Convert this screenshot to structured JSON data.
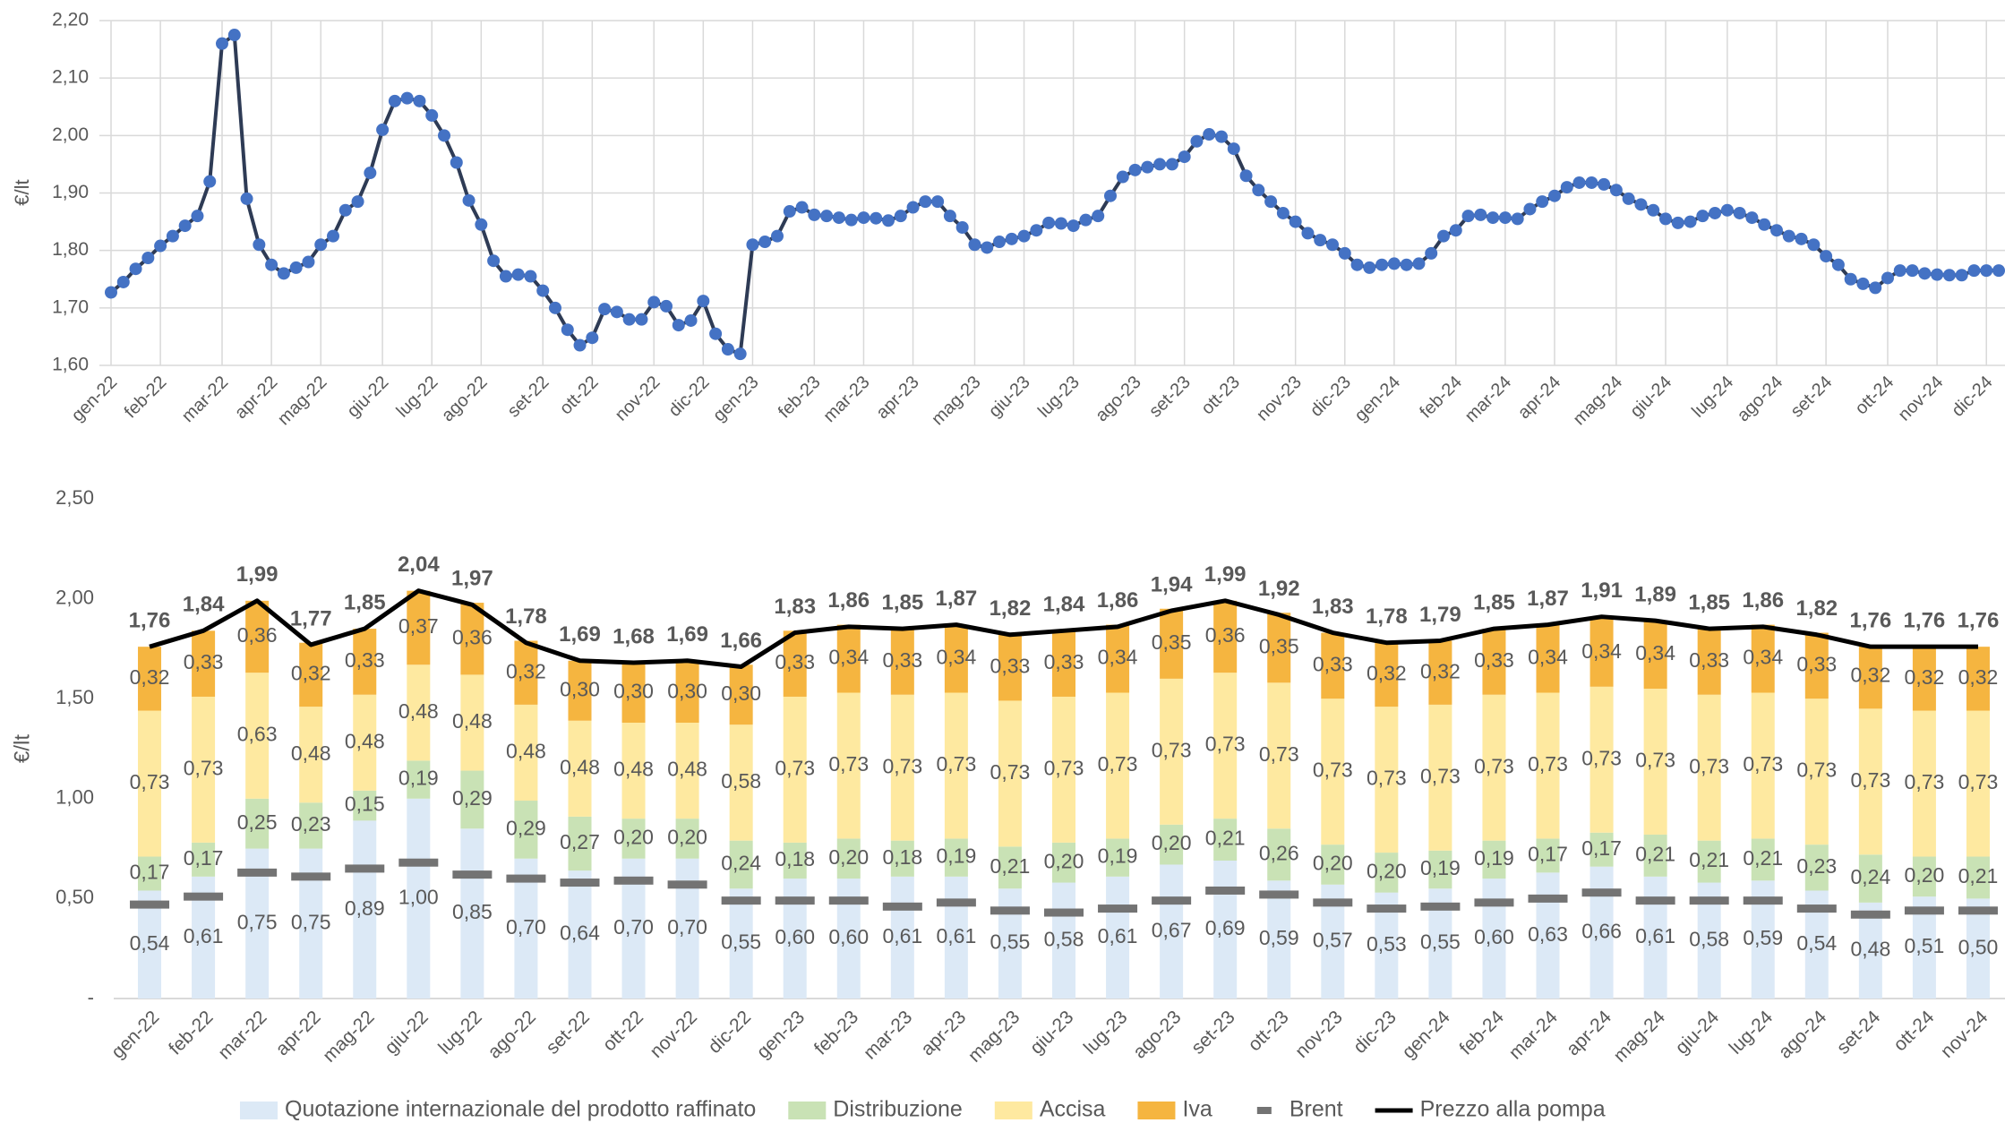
{
  "chart_data": [
    {
      "type": "line",
      "y_label": "€/lt",
      "color": "#4472c4",
      "line_color": "#2e3b55",
      "grid": true,
      "ylim": [
        1.6,
        2.2
      ],
      "yticks": [
        {
          "value": 1.6,
          "label": "1,60"
        },
        {
          "value": 1.7,
          "label": "1,70"
        },
        {
          "value": 1.8,
          "label": "1,80"
        },
        {
          "value": 1.9,
          "label": "1,90"
        },
        {
          "value": 2.0,
          "label": "2,00"
        },
        {
          "value": 2.1,
          "label": "2,10"
        },
        {
          "value": 2.2,
          "label": "2,20"
        }
      ],
      "categories": [
        "gen-22",
        null,
        null,
        null,
        "feb-22",
        null,
        null,
        null,
        null,
        "mar-22",
        null,
        null,
        null,
        "apr-22",
        null,
        null,
        null,
        "mag-22",
        null,
        null,
        null,
        null,
        "giu-22",
        null,
        null,
        null,
        "lug-22",
        null,
        null,
        null,
        "ago-22",
        null,
        null,
        null,
        null,
        "set-22",
        null,
        null,
        null,
        "ott-22",
        null,
        null,
        null,
        null,
        "nov-22",
        null,
        null,
        null,
        "dic-22",
        null,
        null,
        null,
        "gen-23",
        null,
        null,
        null,
        null,
        "feb-23",
        null,
        null,
        null,
        "mar-23",
        null,
        null,
        null,
        "apr-23",
        null,
        null,
        null,
        null,
        "mag-23",
        null,
        null,
        null,
        "giu-23",
        null,
        null,
        null,
        "lug-23",
        null,
        null,
        null,
        null,
        "ago-23",
        null,
        null,
        null,
        "set-23",
        null,
        null,
        null,
        "ott-23",
        null,
        null,
        null,
        null,
        "nov-23",
        null,
        null,
        null,
        "dic-23",
        null,
        null,
        null,
        "gen-24",
        null,
        null,
        null,
        null,
        "feb-24",
        null,
        null,
        null,
        "mar-24",
        null,
        null,
        null,
        "apr-24",
        null,
        null,
        null,
        null,
        "mag-24",
        null,
        null,
        null,
        "giu-24",
        null,
        null,
        null,
        null,
        "lug-24",
        null,
        null,
        null,
        "ago-24",
        null,
        null,
        null,
        "set-24",
        null,
        null,
        null,
        null,
        "ott-24",
        null,
        null,
        null,
        "nov-24",
        null,
        null,
        null,
        "dic-24",
        null
      ],
      "values": [
        1.727,
        1.745,
        1.768,
        1.787,
        1.808,
        1.825,
        1.843,
        1.86,
        1.92,
        2.16,
        2.175,
        1.89,
        1.81,
        1.775,
        1.76,
        1.77,
        1.78,
        1.81,
        1.825,
        1.87,
        1.885,
        1.935,
        2.01,
        2.06,
        2.065,
        2.06,
        2.035,
        2.0,
        1.953,
        1.887,
        1.845,
        1.782,
        1.755,
        1.758,
        1.755,
        1.73,
        1.7,
        1.662,
        1.635,
        1.648,
        1.698,
        1.693,
        1.68,
        1.68,
        1.71,
        1.703,
        1.67,
        1.678,
        1.712,
        1.655,
        1.628,
        1.62,
        1.81,
        1.815,
        1.825,
        1.868,
        1.875,
        1.862,
        1.86,
        1.857,
        1.853,
        1.857,
        1.856,
        1.852,
        1.86,
        1.875,
        1.885,
        1.885,
        1.86,
        1.84,
        1.81,
        1.805,
        1.815,
        1.82,
        1.825,
        1.835,
        1.848,
        1.847,
        1.843,
        1.853,
        1.86,
        1.895,
        1.928,
        1.94,
        1.945,
        1.95,
        1.95,
        1.963,
        1.99,
        2.002,
        1.998,
        1.977,
        1.93,
        1.905,
        1.885,
        1.865,
        1.85,
        1.83,
        1.818,
        1.81,
        1.795,
        1.775,
        1.77,
        1.775,
        1.777,
        1.775,
        1.777,
        1.795,
        1.825,
        1.835,
        1.86,
        1.862,
        1.857,
        1.857,
        1.855,
        1.872,
        1.885,
        1.895,
        1.91,
        1.918,
        1.918,
        1.915,
        1.905,
        1.89,
        1.88,
        1.87,
        1.855,
        1.848,
        1.85,
        1.86,
        1.865,
        1.87,
        1.865,
        1.857,
        1.845,
        1.835,
        1.825,
        1.82,
        1.81,
        1.79,
        1.775,
        1.75,
        1.742,
        1.735,
        1.752,
        1.765,
        1.765,
        1.76,
        1.758,
        1.757,
        1.757,
        1.765,
        1.765,
        1.765
      ]
    },
    {
      "type": "bar",
      "stacked": true,
      "y_label": "€/lt",
      "grid": false,
      "legend": "bottom",
      "ylim": [
        0,
        2.5
      ],
      "yticks": [
        {
          "value": 0,
          "label": "-"
        },
        {
          "value": 0.5,
          "label": "0,50"
        },
        {
          "value": 1.0,
          "label": "1,00"
        },
        {
          "value": 1.5,
          "label": "1,50"
        },
        {
          "value": 2.0,
          "label": "2,00"
        },
        {
          "value": 2.5,
          "label": "2,50"
        }
      ],
      "categories": [
        "gen-22",
        "feb-22",
        "mar-22",
        "apr-22",
        "mag-22",
        "giu-22",
        "lug-22",
        "ago-22",
        "set-22",
        "ott-22",
        "nov-22",
        "dic-22",
        "gen-23",
        "feb-23",
        "mar-23",
        "apr-23",
        "mag-23",
        "giu-23",
        "lug-23",
        "ago-23",
        "set-23",
        "ott-23",
        "nov-23",
        "dic-23",
        "gen-24",
        "feb-24",
        "mar-24",
        "apr-24",
        "mag-24",
        "giu-24",
        "lug-24",
        "ago-24",
        "set-24",
        "ott-24",
        "nov-24"
      ],
      "series": [
        {
          "name": "Quotazione internazionale del prodotto raffinato",
          "type": "bar",
          "color": "#dce9f6",
          "values": [
            0.54,
            0.61,
            0.75,
            0.75,
            0.89,
            1.0,
            0.85,
            0.7,
            0.64,
            0.7,
            0.7,
            0.55,
            0.6,
            0.6,
            0.61,
            0.61,
            0.55,
            0.58,
            0.61,
            0.67,
            0.69,
            0.59,
            0.57,
            0.53,
            0.55,
            0.6,
            0.63,
            0.66,
            0.61,
            0.58,
            0.59,
            0.54,
            0.48,
            0.51,
            0.5
          ],
          "value_labels": [
            "0,54",
            "0,61",
            "0,75",
            "0,75",
            "0,89",
            "1,00",
            "0,85",
            "0,70",
            "0,64",
            "0,70",
            "0,70",
            "0,55",
            "0,60",
            "0,60",
            "0,61",
            "0,61",
            "0,55",
            "0,58",
            "0,61",
            "0,67",
            "0,69",
            "0,59",
            "0,57",
            "0,53",
            "0,55",
            "0,60",
            "0,63",
            "0,66",
            "0,61",
            "0,58",
            "0,59",
            "0,54",
            "0,48",
            "0,51",
            "0,50"
          ]
        },
        {
          "name": "Distribuzione",
          "type": "bar",
          "color": "#c9e2b5",
          "values": [
            0.17,
            0.17,
            0.25,
            0.23,
            0.15,
            0.19,
            0.29,
            0.29,
            0.27,
            0.2,
            0.2,
            0.24,
            0.18,
            0.2,
            0.18,
            0.19,
            0.21,
            0.2,
            0.19,
            0.2,
            0.21,
            0.26,
            0.2,
            0.2,
            0.19,
            0.19,
            0.17,
            0.17,
            0.21,
            0.21,
            0.21,
            0.23,
            0.24,
            0.2,
            0.21
          ],
          "value_labels": [
            "0,17",
            "0,17",
            "0,25",
            "0,23",
            "0,15",
            "0,19",
            "0,29",
            "0,29",
            "0,27",
            "0,20",
            "0,20",
            "0,24",
            "0,18",
            "0,20",
            "0,18",
            "0,19",
            "0,21",
            "0,20",
            "0,19",
            "0,20",
            "0,21",
            "0,26",
            "0,20",
            "0,20",
            "0,19",
            "0,19",
            "0,17",
            "0,17",
            "0,21",
            "0,21",
            "0,21",
            "0,23",
            "0,24",
            "0,20",
            "0,21"
          ]
        },
        {
          "name": "Accisa",
          "type": "bar",
          "color": "#fee9a0",
          "values": [
            0.73,
            0.73,
            0.63,
            0.48,
            0.48,
            0.48,
            0.48,
            0.48,
            0.48,
            0.48,
            0.48,
            0.58,
            0.73,
            0.73,
            0.73,
            0.73,
            0.73,
            0.73,
            0.73,
            0.73,
            0.73,
            0.73,
            0.73,
            0.73,
            0.73,
            0.73,
            0.73,
            0.73,
            0.73,
            0.73,
            0.73,
            0.73,
            0.73,
            0.73,
            0.73
          ],
          "value_labels": [
            "0,73",
            "0,73",
            "0,63",
            "0,48",
            "0,48",
            "0,48",
            "0,48",
            "0,48",
            "0,48",
            "0,48",
            "0,48",
            "0,58",
            "0,73",
            "0,73",
            "0,73",
            "0,73",
            "0,73",
            "0,73",
            "0,73",
            "0,73",
            "0,73",
            "0,73",
            "0,73",
            "0,73",
            "0,73",
            "0,73",
            "0,73",
            "0,73",
            "0,73",
            "0,73",
            "0,73",
            "0,73",
            "0,73",
            "0,73",
            "0,73"
          ]
        },
        {
          "name": "Iva",
          "type": "bar",
          "color": "#f5b540",
          "values": [
            0.32,
            0.33,
            0.36,
            0.32,
            0.33,
            0.37,
            0.36,
            0.32,
            0.3,
            0.3,
            0.3,
            0.3,
            0.33,
            0.34,
            0.33,
            0.34,
            0.33,
            0.33,
            0.34,
            0.35,
            0.36,
            0.35,
            0.33,
            0.32,
            0.32,
            0.33,
            0.34,
            0.34,
            0.34,
            0.33,
            0.34,
            0.33,
            0.32,
            0.32,
            0.32
          ],
          "value_labels": [
            "0,32",
            "0,33",
            "0,36",
            "0,32",
            "0,33",
            "0,37",
            "0,36",
            "0,32",
            "0,30",
            "0,30",
            "0,30",
            "0,30",
            "0,33",
            "0,34",
            "0,33",
            "0,34",
            "0,33",
            "0,33",
            "0,34",
            "0,35",
            "0,36",
            "0,35",
            "0,33",
            "0,32",
            "0,32",
            "0,33",
            "0,34",
            "0,34",
            "0,34",
            "0,33",
            "0,34",
            "0,33",
            "0,32",
            "0,32",
            "0,32"
          ]
        },
        {
          "name": "Brent",
          "type": "dash",
          "color": "#737373",
          "values": [
            0.47,
            0.51,
            0.63,
            0.61,
            0.65,
            0.68,
            0.62,
            0.6,
            0.58,
            0.59,
            0.57,
            0.49,
            0.49,
            0.49,
            0.46,
            0.48,
            0.44,
            0.43,
            0.45,
            0.49,
            0.54,
            0.52,
            0.48,
            0.45,
            0.46,
            0.48,
            0.5,
            0.53,
            0.49,
            0.49,
            0.49,
            0.45,
            0.42,
            0.44,
            0.44
          ]
        },
        {
          "name": "Prezzo alla pompa",
          "type": "line",
          "color": "#000000",
          "values": [
            1.76,
            1.84,
            1.99,
            1.77,
            1.85,
            2.04,
            1.97,
            1.78,
            1.69,
            1.68,
            1.69,
            1.66,
            1.83,
            1.86,
            1.85,
            1.87,
            1.82,
            1.84,
            1.86,
            1.94,
            1.99,
            1.92,
            1.83,
            1.78,
            1.79,
            1.85,
            1.87,
            1.91,
            1.89,
            1.85,
            1.86,
            1.82,
            1.76,
            1.76,
            1.76
          ],
          "value_labels": [
            "1,76",
            "1,84",
            "1,99",
            "1,77",
            "1,85",
            "2,04",
            "1,97",
            "1,78",
            "1,69",
            "1,68",
            "1,69",
            "1,66",
            "1,83",
            "1,86",
            "1,85",
            "1,87",
            "1,82",
            "1,84",
            "1,86",
            "1,94",
            "1,99",
            "1,92",
            "1,83",
            "1,78",
            "1,79",
            "1,85",
            "1,87",
            "1,91",
            "1,89",
            "1,85",
            "1,86",
            "1,82",
            "1,76",
            "1,76",
            "1,76"
          ]
        }
      ]
    }
  ]
}
